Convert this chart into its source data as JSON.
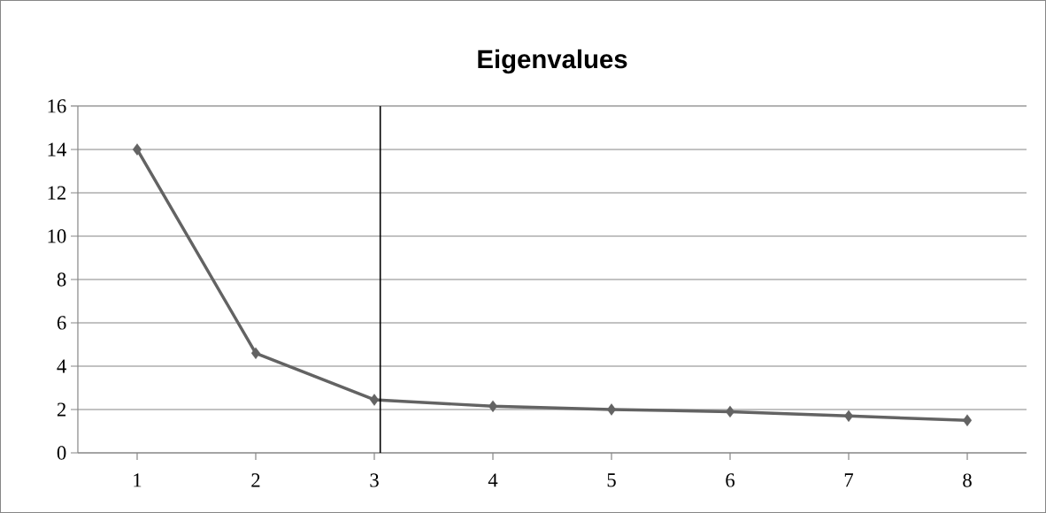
{
  "chart_data": {
    "type": "line",
    "title": "Eigenvalues",
    "x": [
      1,
      2,
      3,
      4,
      5,
      6,
      7,
      8
    ],
    "series": [
      {
        "color": "#636363",
        "values": [
          14,
          4.6,
          2.45,
          2.15,
          2.0,
          1.9,
          1.7,
          1.5
        ]
      }
    ],
    "xlim": [
      0.5,
      8.5
    ],
    "xticks": [
      1,
      2,
      3,
      4,
      5,
      6,
      7,
      8
    ],
    "ylim": [
      0,
      16
    ],
    "yticks": [
      0,
      2,
      4,
      6,
      8,
      10,
      12,
      14,
      16
    ],
    "ref_lines": [
      {
        "axis": "x",
        "value": 3.05,
        "color": "#000000"
      }
    ],
    "grid": "y",
    "marker": "diamond",
    "line_style": "solid"
  }
}
